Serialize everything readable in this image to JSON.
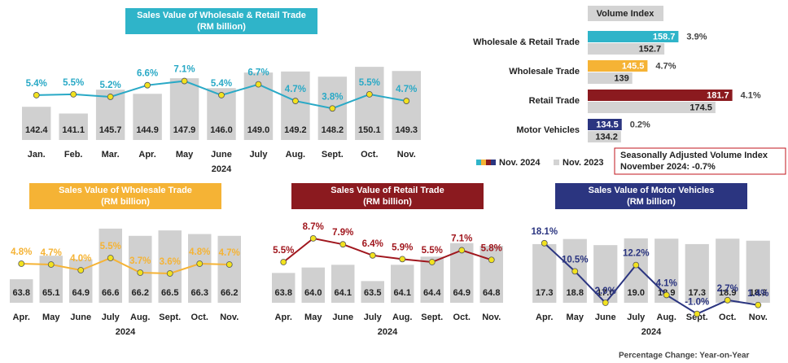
{
  "chart_data": [
    {
      "type": "bar_line",
      "title": "Sales Value of Wholesale & Retail Trade",
      "subtitle": "(RM billion)",
      "title_background": "#2fb4c9",
      "categories": [
        "Jan.",
        "Feb.",
        "Mar.",
        "Apr.",
        "May",
        "June",
        "July",
        "Aug.",
        "Sept.",
        "Oct.",
        "Nov."
      ],
      "xlabel": "2024",
      "series": [
        {
          "color": "#d0d0d0",
          "values": [
            142.4,
            141.1,
            145.7,
            144.9,
            147.9,
            146.0,
            149.0,
            149.2,
            148.2,
            150.1,
            149.3
          ],
          "value_labels": [
            "142.4",
            "141.1",
            "145.7",
            "144.9",
            "147.9",
            "146.0",
            "149.0",
            "149.2",
            "148.2",
            "150.1",
            "149.3"
          ]
        },
        {
          "color": "#29a9c6",
          "axis": "y2",
          "values": [
            5.4,
            5.5,
            5.2,
            6.6,
            7.1,
            5.4,
            6.7,
            4.7,
            3.8,
            5.5,
            4.7
          ],
          "value_labels": [
            "5.4%",
            "5.5%",
            "5.2%",
            "6.6%",
            "7.1%",
            "5.4%",
            "6.7%",
            "4.7%",
            "3.8%",
            "5.5%",
            "4.7%"
          ]
        }
      ],
      "ylim": [
        136,
        152
      ],
      "y2lim": [
        0,
        10
      ]
    },
    {
      "type": "hbar",
      "title": "Volume Index",
      "categories": [
        "Wholesale & Retail Trade",
        "Wholesale Trade",
        "Retail Trade",
        "Motor Vehicles"
      ],
      "series": [
        {
          "name": "Nov. 2024",
          "colors": [
            "#2fb4c9",
            "#f5b335",
            "#8b1a1f",
            "#2b3580"
          ],
          "values": [
            158.7,
            145.5,
            181.7,
            134.5
          ]
        },
        {
          "name": "Nov. 2023",
          "color": "#d3d3d3",
          "values": [
            152.7,
            139.0,
            174.5,
            134.2
          ]
        }
      ],
      "changes": {
        "values": [
          3.9,
          4.7,
          4.1,
          0.2
        ],
        "value_labels": [
          "3.9%",
          "4.7%",
          "4.1%",
          "0.2%"
        ]
      },
      "xlim": [
        120,
        186
      ]
    },
    {
      "type": "bar_line",
      "title": "Sales Value of Wholesale Trade",
      "subtitle": "(RM billion)",
      "title_background": "#f5b335",
      "categories": [
        "Apr.",
        "May",
        "June",
        "July",
        "Aug.",
        "Sept.",
        "Oct.",
        "Nov."
      ],
      "xlabel": "2024",
      "series": [
        {
          "color": "#d0d0d0",
          "values": [
            63.8,
            65.1,
            64.9,
            66.6,
            66.2,
            66.5,
            66.3,
            66.2
          ],
          "value_labels": [
            "63.8",
            "65.1",
            "64.9",
            "66.6",
            "66.2",
            "66.5",
            "66.3",
            "66.2"
          ]
        },
        {
          "color": "#f5b335",
          "axis": "y2",
          "values": [
            4.8,
            4.7,
            4.0,
            5.5,
            3.7,
            3.6,
            4.8,
            4.7
          ],
          "value_labels": [
            "4.8%",
            "4.7%",
            "4.0%",
            "5.5%",
            "3.7%",
            "3.6%",
            "4.8%",
            "4.7%"
          ]
        }
      ],
      "ylim": [
        62.5,
        67
      ],
      "y2lim": [
        0,
        10
      ]
    },
    {
      "type": "bar_line",
      "title": "Sales Value of Retail Trade",
      "subtitle": "(RM billion)",
      "title_background": "#8b1a1f",
      "categories": [
        "Apr.",
        "May",
        "June",
        "July",
        "Aug.",
        "Sept.",
        "Oct.",
        "Nov."
      ],
      "xlabel": "2024",
      "series": [
        {
          "color": "#d0d0d0",
          "values": [
            63.8,
            64.0,
            64.1,
            63.5,
            64.1,
            64.4,
            64.9,
            64.8
          ],
          "value_labels": [
            "63.8",
            "64.0",
            "64.1",
            "63.5",
            "64.1",
            "64.4",
            "64.9",
            "64.8"
          ]
        },
        {
          "color": "#a0161d",
          "axis": "y2",
          "values": [
            5.5,
            8.7,
            7.9,
            6.4,
            5.9,
            5.5,
            7.1,
            5.8
          ],
          "value_labels": [
            "5.5%",
            "8.7%",
            "7.9%",
            "6.4%",
            "5.9%",
            "5.5%",
            "7.1%",
            "5.8%"
          ]
        }
      ],
      "ylim": [
        62.7,
        65.7
      ],
      "y2lim": [
        0,
        11
      ]
    },
    {
      "type": "bar_line",
      "title": "Sales Value of Motor Vehicles",
      "subtitle": "(RM billion)",
      "title_background": "#2b3580",
      "categories": [
        "Apr.",
        "May",
        "June",
        "July",
        "Aug.",
        "Sept.",
        "Oct.",
        "Nov."
      ],
      "xlabel": "2024",
      "series": [
        {
          "color": "#d0d0d0",
          "values": [
            17.3,
            18.8,
            17.0,
            19.0,
            18.9,
            17.3,
            18.9,
            18.3
          ],
          "value_labels": [
            "17.3",
            "18.8",
            "17.0",
            "19.0",
            "18.9",
            "17.3",
            "18.9",
            "18.3"
          ]
        },
        {
          "color": "#2b3580",
          "axis": "y2",
          "values": [
            18.1,
            10.5,
            2.0,
            12.2,
            4.1,
            -1.0,
            2.7,
            1.4
          ],
          "value_labels": [
            "18.1%",
            "10.5%",
            "2.0%",
            "12.2%",
            "4.1%",
            "-1.0%",
            "2.7%",
            "1.4%"
          ]
        }
      ],
      "ylim": [
        0,
        24
      ],
      "y2lim": [
        2,
        24
      ]
    }
  ],
  "notes": {
    "box": [
      "Seasonally Adjusted Volume Index",
      "November 2024: -0.7%"
    ],
    "footer": "Percentage Change: Year-on-Year"
  }
}
